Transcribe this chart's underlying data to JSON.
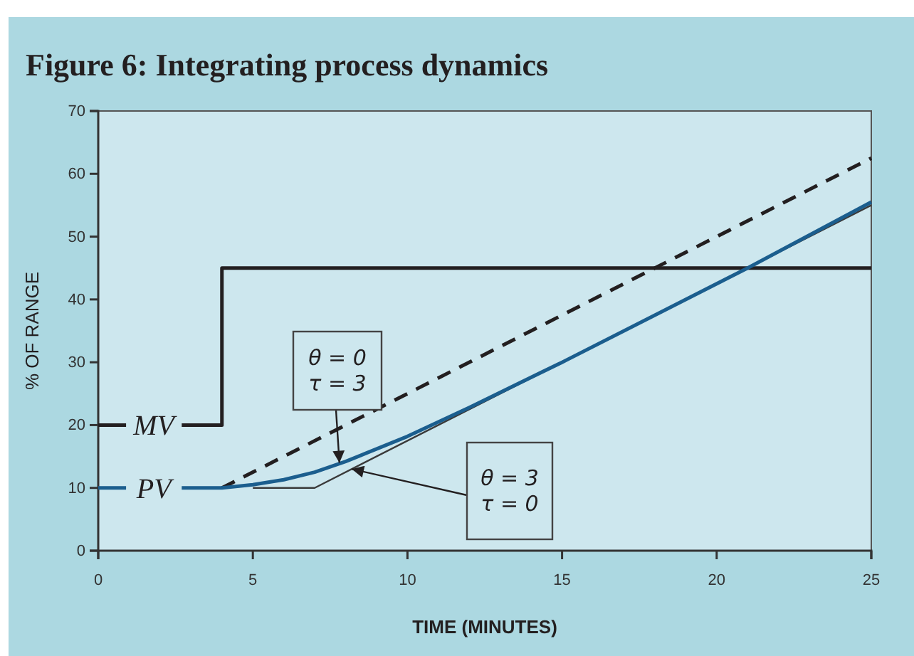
{
  "chart_data": {
    "type": "line",
    "title": "Figure 6: Integrating process dynamics",
    "xlabel": "TIME (MINUTES)",
    "ylabel": "% OF RANGE",
    "xlim": [
      0,
      25
    ],
    "xticks": [
      0,
      5,
      10,
      15,
      20,
      25
    ],
    "ylim": [
      0,
      70
    ],
    "yticks": [
      0,
      10,
      20,
      30,
      40,
      50,
      60,
      70
    ],
    "grid": false,
    "marker": "none",
    "series": [
      {
        "name": "MV",
        "color": "#231f20",
        "x": [
          0,
          0.9,
          1.8,
          2.7,
          4,
          4,
          25
        ],
        "values": [
          20,
          20,
          null,
          20,
          20,
          45,
          45
        ]
      },
      {
        "color": "#231f20",
        "line_style": "dashed",
        "x": [
          4,
          25
        ],
        "values": [
          10,
          62.5
        ]
      },
      {
        "color": "#3a3a3a",
        "x": [
          5,
          7,
          25
        ],
        "values": [
          10,
          10,
          55
        ]
      },
      {
        "name": "PV",
        "color": "#1b5e8e",
        "x": [
          0,
          0.9,
          1.8,
          2.7,
          4,
          5,
          6,
          7,
          8,
          10,
          12,
          15,
          18,
          21,
          25
        ],
        "values": [
          10,
          10,
          null,
          10,
          10,
          10.5,
          11.3,
          12.5,
          14.2,
          18.2,
          22.8,
          30,
          37.5,
          45,
          55.5
        ]
      }
    ],
    "annotations": [
      {
        "text": "θ = 0\nτ = 3",
        "x": 7.8,
        "y": 14
      },
      {
        "text": "θ = 3\nτ = 0",
        "x": 8.2,
        "y": 13
      }
    ]
  }
}
